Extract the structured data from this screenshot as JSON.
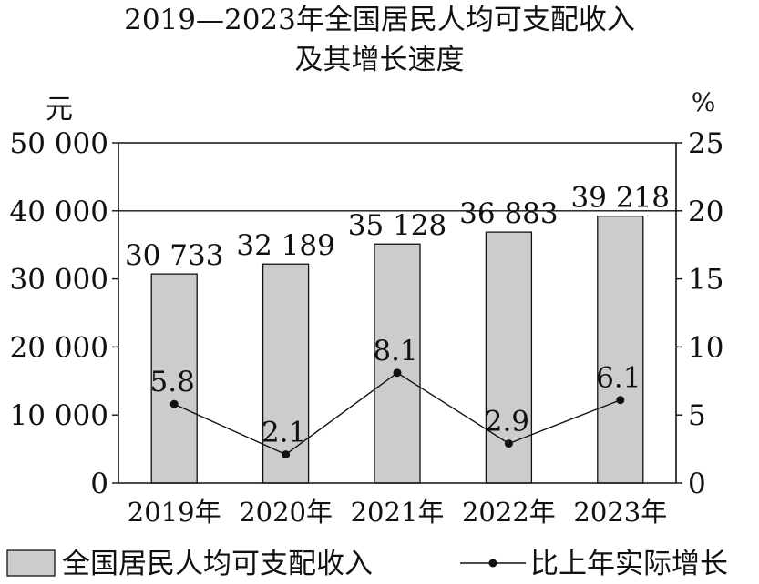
{
  "chart_data": {
    "type": "bar",
    "title_line1": "2019—2023年全国居民人均可支配收入",
    "title_line2": "及其增长速度",
    "categories": [
      "2019年",
      "2020年",
      "2021年",
      "2022年",
      "2023年"
    ],
    "series": [
      {
        "name": "全国居民人均可支配收入",
        "type": "bar",
        "axis": "left",
        "values": [
          30733,
          32189,
          35128,
          36883,
          39218
        ],
        "labels": [
          "30 733",
          "32 189",
          "35 128",
          "36 883",
          "39 218"
        ],
        "color": "#cccccc"
      },
      {
        "name": "比上年实际增长",
        "type": "line",
        "axis": "right",
        "values": [
          5.8,
          2.1,
          8.1,
          2.9,
          6.1
        ],
        "labels": [
          "5.8",
          "2.1",
          "8.1",
          "2.9",
          "6.1"
        ],
        "color": "#111111"
      }
    ],
    "y_left": {
      "unit": "元",
      "ylim": [
        0,
        50000
      ],
      "ticks": [
        0,
        10000,
        20000,
        30000,
        40000,
        50000
      ],
      "tick_labels": [
        "0",
        "10 000",
        "20 000",
        "30 000",
        "40 000",
        "50 000"
      ]
    },
    "y_right": {
      "unit": "%",
      "ylim": [
        0,
        25
      ],
      "ticks": [
        0,
        5,
        10,
        15,
        20,
        25
      ],
      "tick_labels": [
        "0",
        "5",
        "10",
        "15",
        "20",
        "25"
      ]
    },
    "grid": "horizontal at 20 and 25 (right axis)",
    "legend_position": "bottom"
  }
}
